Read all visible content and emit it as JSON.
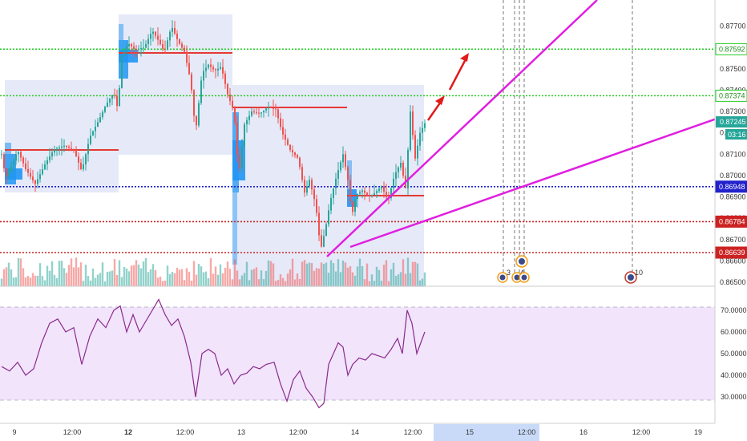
{
  "chart_data": [
    {
      "type": "candlestick",
      "panel": "price",
      "y_range": [
        0.865,
        0.878
      ],
      "price_ticks": [
        "0.87700",
        "0.87600",
        "0.87500",
        "0.87400",
        "0.87300",
        "0.87200",
        "0.87100",
        "0.87000",
        "0.86900",
        "0.86800",
        "0.86700",
        "0.86600",
        "0.86500"
      ],
      "current_price": "0.87245",
      "countdown": "03:16",
      "horizontal_levels": [
        {
          "price": 0.87592,
          "label": "0.87592",
          "color": "#22cc22",
          "style": "dotted"
        },
        {
          "price": 0.87374,
          "label": "0.87374",
          "color": "#22cc22",
          "style": "dotted"
        },
        {
          "price": 0.86948,
          "label": "0.86948",
          "color": "#2222cc",
          "style": "dotted"
        },
        {
          "price": 0.86784,
          "label": "0.86784",
          "color": "#cc2222",
          "style": "dotted"
        },
        {
          "price": 0.86639,
          "label": "0.86639",
          "color": "#cc2222",
          "style": "dotted"
        }
      ],
      "price_series": [
        {
          "t": 0,
          "v": 0.871
        },
        {
          "t": 5,
          "v": 0.8699
        },
        {
          "t": 12,
          "v": 0.8704
        },
        {
          "t": 20,
          "v": 0.8712
        },
        {
          "t": 30,
          "v": 0.8703
        },
        {
          "t": 42,
          "v": 0.8696
        },
        {
          "t": 55,
          "v": 0.8706
        },
        {
          "t": 65,
          "v": 0.8712
        },
        {
          "t": 78,
          "v": 0.8714
        },
        {
          "t": 90,
          "v": 0.8712
        },
        {
          "t": 100,
          "v": 0.8702
        },
        {
          "t": 110,
          "v": 0.8718
        },
        {
          "t": 120,
          "v": 0.8725
        },
        {
          "t": 130,
          "v": 0.8733
        },
        {
          "t": 140,
          "v": 0.8739
        },
        {
          "t": 145,
          "v": 0.8731
        },
        {
          "t": 150,
          "v": 0.8756
        },
        {
          "t": 158,
          "v": 0.8762
        },
        {
          "t": 166,
          "v": 0.8759
        },
        {
          "t": 178,
          "v": 0.876
        },
        {
          "t": 188,
          "v": 0.8768
        },
        {
          "t": 196,
          "v": 0.8763
        },
        {
          "t": 203,
          "v": 0.8758
        },
        {
          "t": 212,
          "v": 0.877
        },
        {
          "t": 220,
          "v": 0.8763
        },
        {
          "t": 228,
          "v": 0.8758
        },
        {
          "t": 236,
          "v": 0.8744
        },
        {
          "t": 242,
          "v": 0.872
        },
        {
          "t": 250,
          "v": 0.8748
        },
        {
          "t": 258,
          "v": 0.8752
        },
        {
          "t": 266,
          "v": 0.8749
        },
        {
          "t": 274,
          "v": 0.8751
        },
        {
          "t": 282,
          "v": 0.8738
        },
        {
          "t": 290,
          "v": 0.873
        },
        {
          "t": 296,
          "v": 0.87
        },
        {
          "t": 303,
          "v": 0.8724
        },
        {
          "t": 312,
          "v": 0.873
        },
        {
          "t": 322,
          "v": 0.8729
        },
        {
          "t": 332,
          "v": 0.8732
        },
        {
          "t": 342,
          "v": 0.8731
        },
        {
          "t": 350,
          "v": 0.872
        },
        {
          "t": 360,
          "v": 0.8712
        },
        {
          "t": 370,
          "v": 0.8708
        },
        {
          "t": 378,
          "v": 0.8692
        },
        {
          "t": 384,
          "v": 0.8698
        },
        {
          "t": 392,
          "v": 0.8686
        },
        {
          "t": 398,
          "v": 0.8665
        },
        {
          "t": 404,
          "v": 0.8675
        },
        {
          "t": 410,
          "v": 0.8688
        },
        {
          "t": 418,
          "v": 0.87
        },
        {
          "t": 426,
          "v": 0.871
        },
        {
          "t": 432,
          "v": 0.8698
        },
        {
          "t": 437,
          "v": 0.8681
        },
        {
          "t": 442,
          "v": 0.8691
        },
        {
          "t": 450,
          "v": 0.8693
        },
        {
          "t": 458,
          "v": 0.869
        },
        {
          "t": 466,
          "v": 0.8692
        },
        {
          "t": 474,
          "v": 0.8695
        },
        {
          "t": 482,
          "v": 0.8688
        },
        {
          "t": 490,
          "v": 0.87
        },
        {
          "t": 498,
          "v": 0.8706
        },
        {
          "t": 504,
          "v": 0.8694
        },
        {
          "t": 510,
          "v": 0.873
        },
        {
          "t": 516,
          "v": 0.8708
        },
        {
          "t": 522,
          "v": 0.872
        },
        {
          "t": 528,
          "v": 0.87245
        }
      ],
      "rsi_series": [
        {
          "t": 0,
          "v": 44
        },
        {
          "t": 10,
          "v": 42
        },
        {
          "t": 20,
          "v": 46
        },
        {
          "t": 30,
          "v": 40
        },
        {
          "t": 40,
          "v": 43
        },
        {
          "t": 50,
          "v": 55
        },
        {
          "t": 60,
          "v": 64
        },
        {
          "t": 70,
          "v": 66
        },
        {
          "t": 80,
          "v": 60
        },
        {
          "t": 90,
          "v": 62
        },
        {
          "t": 100,
          "v": 45
        },
        {
          "t": 110,
          "v": 58
        },
        {
          "t": 120,
          "v": 66
        },
        {
          "t": 130,
          "v": 62
        },
        {
          "t": 140,
          "v": 70
        },
        {
          "t": 148,
          "v": 72
        },
        {
          "t": 156,
          "v": 60
        },
        {
          "t": 164,
          "v": 68
        },
        {
          "t": 172,
          "v": 60
        },
        {
          "t": 180,
          "v": 65
        },
        {
          "t": 188,
          "v": 70
        },
        {
          "t": 196,
          "v": 75
        },
        {
          "t": 204,
          "v": 68
        },
        {
          "t": 212,
          "v": 63
        },
        {
          "t": 220,
          "v": 66
        },
        {
          "t": 228,
          "v": 58
        },
        {
          "t": 236,
          "v": 46
        },
        {
          "t": 242,
          "v": 30
        },
        {
          "t": 250,
          "v": 50
        },
        {
          "t": 258,
          "v": 52
        },
        {
          "t": 266,
          "v": 50
        },
        {
          "t": 274,
          "v": 40
        },
        {
          "t": 282,
          "v": 43
        },
        {
          "t": 290,
          "v": 36
        },
        {
          "t": 298,
          "v": 40
        },
        {
          "t": 306,
          "v": 41
        },
        {
          "t": 314,
          "v": 44
        },
        {
          "t": 322,
          "v": 43
        },
        {
          "t": 330,
          "v": 45
        },
        {
          "t": 340,
          "v": 46
        },
        {
          "t": 348,
          "v": 36
        },
        {
          "t": 356,
          "v": 28
        },
        {
          "t": 364,
          "v": 38
        },
        {
          "t": 372,
          "v": 42
        },
        {
          "t": 380,
          "v": 34
        },
        {
          "t": 388,
          "v": 30
        },
        {
          "t": 396,
          "v": 25
        },
        {
          "t": 402,
          "v": 27
        },
        {
          "t": 408,
          "v": 45
        },
        {
          "t": 414,
          "v": 50
        },
        {
          "t": 420,
          "v": 55
        },
        {
          "t": 426,
          "v": 53
        },
        {
          "t": 432,
          "v": 40
        },
        {
          "t": 438,
          "v": 45
        },
        {
          "t": 446,
          "v": 48
        },
        {
          "t": 454,
          "v": 47
        },
        {
          "t": 462,
          "v": 50
        },
        {
          "t": 470,
          "v": 49
        },
        {
          "t": 478,
          "v": 48
        },
        {
          "t": 486,
          "v": 52
        },
        {
          "t": 494,
          "v": 57
        },
        {
          "t": 500,
          "v": 50
        },
        {
          "t": 506,
          "v": 70
        },
        {
          "t": 512,
          "v": 64
        },
        {
          "t": 518,
          "v": 50
        },
        {
          "t": 528,
          "v": 60
        }
      ],
      "rsi_ticks": [
        "70.0000",
        "60.0000",
        "50.0000",
        "40.0000",
        "30.0000"
      ],
      "rsi_range": [
        20,
        80
      ],
      "time_ticks": [
        {
          "label": "9",
          "bold": false
        },
        {
          "label": "12:00",
          "bold": false
        },
        {
          "label": "12",
          "bold": true
        },
        {
          "label": "12:00",
          "bold": false
        },
        {
          "label": "13",
          "bold": false
        },
        {
          "label": "12:00",
          "bold": false
        },
        {
          "label": "14",
          "bold": false
        },
        {
          "label": "12:00",
          "bold": false
        },
        {
          "label": "15",
          "bold": false
        },
        {
          "label": "12:00",
          "bold": false
        },
        {
          "label": "16",
          "bold": false
        },
        {
          "label": "12:00",
          "bold": false
        },
        {
          "label": "19",
          "bold": false
        }
      ],
      "event_labels": [
        "3",
        "4",
        "10"
      ],
      "colors": {
        "bull": "#26a69a",
        "bear": "#ef5350",
        "trendline": "#e01ee0",
        "arrow": "#e21b1b",
        "rsi_line": "#8b2a8b",
        "rsi_band": "#f1e4fb",
        "profile_box": "#e6e9f8",
        "profile_bar": "#2196f3",
        "poc_line": "#e53935"
      }
    }
  ]
}
